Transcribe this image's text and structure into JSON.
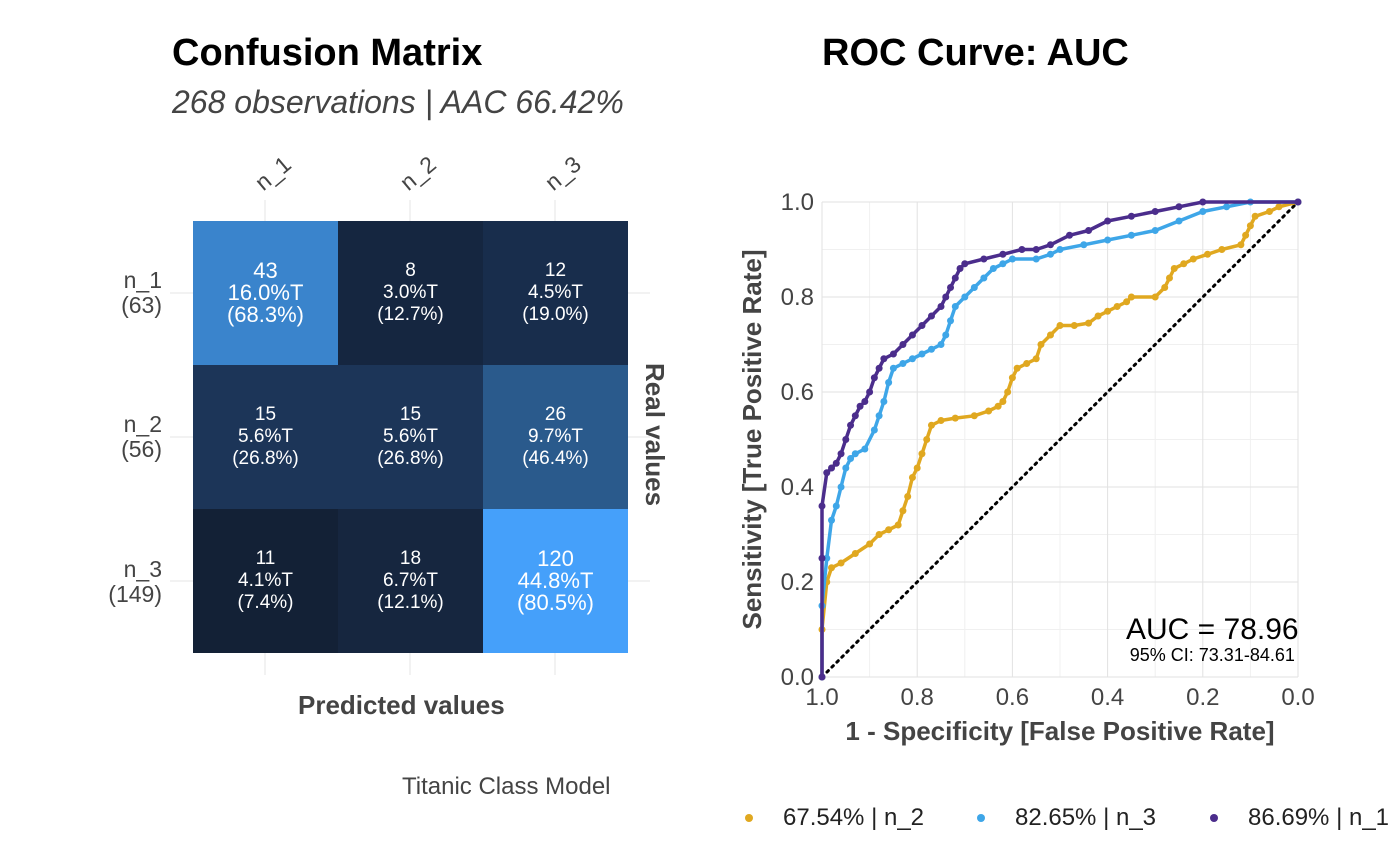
{
  "confusion": {
    "title": "Confusion Matrix",
    "subtitle": "268 observations | AAC 66.42%",
    "xlabel": "Predicted values",
    "ylabel": "Real values",
    "caption": "Titanic Class Model",
    "columns": [
      "n_1",
      "n_2",
      "n_3"
    ],
    "rows": [
      {
        "label": "n_1",
        "total": "(63)"
      },
      {
        "label": "n_2",
        "total": "(56)"
      },
      {
        "label": "n_3",
        "total": "(149)"
      }
    ],
    "cells": [
      [
        {
          "count": "43",
          "pct": "16.0%T",
          "rowpct": "(68.3%)",
          "color": "#3a84cc"
        },
        {
          "count": "8",
          "pct": "3.0%T",
          "rowpct": "(12.7%)",
          "color": "#152640"
        },
        {
          "count": "12",
          "pct": "4.5%T",
          "rowpct": "(19.0%)",
          "color": "#182d4c"
        }
      ],
      [
        {
          "count": "15",
          "pct": "5.6%T",
          "rowpct": "(26.8%)",
          "color": "#1c3558"
        },
        {
          "count": "15",
          "pct": "5.6%T",
          "rowpct": "(26.8%)",
          "color": "#1c3558"
        },
        {
          "count": "26",
          "pct": "9.7%T",
          "rowpct": "(46.4%)",
          "color": "#2a5a8c"
        }
      ],
      [
        {
          "count": "11",
          "pct": "4.1%T",
          "rowpct": "(7.4%)",
          "color": "#132136"
        },
        {
          "count": "18",
          "pct": "6.7%T",
          "rowpct": "(12.1%)",
          "color": "#16263f"
        },
        {
          "count": "120",
          "pct": "44.8%T",
          "rowpct": "(80.5%)",
          "color": "#45a0fa"
        }
      ]
    ]
  },
  "roc": {
    "title": "ROC Curve: AUC",
    "auc_text": "AUC = 78.96",
    "ci_text": "95% CI: 73.31-84.61"
  },
  "chart_data": {
    "type": "line",
    "title": "ROC Curve: AUC",
    "xlabel": "1 - Specificity [False Positive Rate]",
    "ylabel": "Sensitivity [True Positive Rate]",
    "xlim": [
      1.0,
      0.0
    ],
    "ylim": [
      0.0,
      1.0
    ],
    "x_ticks": [
      "1.0",
      "0.8",
      "0.6",
      "0.4",
      "0.2",
      "0.0"
    ],
    "y_ticks": [
      "0.0",
      "0.2",
      "0.4",
      "0.6",
      "0.8",
      "1.0"
    ],
    "grid": true,
    "legend_position": "bottom",
    "reference_line": {
      "from": [
        1.0,
        0.0
      ],
      "to": [
        0.0,
        1.0
      ],
      "style": "dotted",
      "color": "#000000"
    },
    "series": [
      {
        "name": "67.54% | n_2",
        "color": "#e0a820",
        "points": [
          [
            1.0,
            0.0
          ],
          [
            1.0,
            0.1
          ],
          [
            0.99,
            0.2
          ],
          [
            0.98,
            0.23
          ],
          [
            0.96,
            0.24
          ],
          [
            0.93,
            0.26
          ],
          [
            0.9,
            0.28
          ],
          [
            0.88,
            0.3
          ],
          [
            0.86,
            0.31
          ],
          [
            0.84,
            0.32
          ],
          [
            0.83,
            0.35
          ],
          [
            0.82,
            0.38
          ],
          [
            0.81,
            0.42
          ],
          [
            0.8,
            0.44
          ],
          [
            0.79,
            0.47
          ],
          [
            0.78,
            0.5
          ],
          [
            0.77,
            0.53
          ],
          [
            0.75,
            0.54
          ],
          [
            0.72,
            0.545
          ],
          [
            0.68,
            0.55
          ],
          [
            0.65,
            0.56
          ],
          [
            0.63,
            0.57
          ],
          [
            0.62,
            0.58
          ],
          [
            0.61,
            0.6
          ],
          [
            0.6,
            0.63
          ],
          [
            0.59,
            0.65
          ],
          [
            0.57,
            0.66
          ],
          [
            0.55,
            0.67
          ],
          [
            0.54,
            0.7
          ],
          [
            0.52,
            0.72
          ],
          [
            0.5,
            0.74
          ],
          [
            0.47,
            0.74
          ],
          [
            0.44,
            0.745
          ],
          [
            0.42,
            0.76
          ],
          [
            0.4,
            0.77
          ],
          [
            0.38,
            0.78
          ],
          [
            0.36,
            0.79
          ],
          [
            0.35,
            0.8
          ],
          [
            0.3,
            0.8
          ],
          [
            0.28,
            0.82
          ],
          [
            0.27,
            0.84
          ],
          [
            0.26,
            0.86
          ],
          [
            0.24,
            0.87
          ],
          [
            0.22,
            0.88
          ],
          [
            0.19,
            0.89
          ],
          [
            0.16,
            0.9
          ],
          [
            0.12,
            0.91
          ],
          [
            0.11,
            0.93
          ],
          [
            0.1,
            0.95
          ],
          [
            0.09,
            0.97
          ],
          [
            0.06,
            0.98
          ],
          [
            0.04,
            0.99
          ],
          [
            0.0,
            1.0
          ]
        ]
      },
      {
        "name": "82.65% | n_3",
        "color": "#3ea6e8",
        "points": [
          [
            1.0,
            0.0
          ],
          [
            1.0,
            0.15
          ],
          [
            0.99,
            0.25
          ],
          [
            0.98,
            0.33
          ],
          [
            0.97,
            0.36
          ],
          [
            0.96,
            0.4
          ],
          [
            0.95,
            0.44
          ],
          [
            0.94,
            0.46
          ],
          [
            0.93,
            0.47
          ],
          [
            0.91,
            0.48
          ],
          [
            0.89,
            0.52
          ],
          [
            0.88,
            0.55
          ],
          [
            0.87,
            0.58
          ],
          [
            0.86,
            0.62
          ],
          [
            0.85,
            0.65
          ],
          [
            0.83,
            0.66
          ],
          [
            0.81,
            0.67
          ],
          [
            0.79,
            0.68
          ],
          [
            0.77,
            0.69
          ],
          [
            0.75,
            0.7
          ],
          [
            0.74,
            0.72
          ],
          [
            0.73,
            0.75
          ],
          [
            0.72,
            0.78
          ],
          [
            0.7,
            0.8
          ],
          [
            0.68,
            0.82
          ],
          [
            0.66,
            0.84
          ],
          [
            0.64,
            0.86
          ],
          [
            0.62,
            0.87
          ],
          [
            0.6,
            0.88
          ],
          [
            0.55,
            0.88
          ],
          [
            0.52,
            0.89
          ],
          [
            0.5,
            0.9
          ],
          [
            0.45,
            0.91
          ],
          [
            0.4,
            0.92
          ],
          [
            0.35,
            0.93
          ],
          [
            0.3,
            0.94
          ],
          [
            0.25,
            0.96
          ],
          [
            0.2,
            0.98
          ],
          [
            0.15,
            0.99
          ],
          [
            0.1,
            1.0
          ],
          [
            0.0,
            1.0
          ]
        ]
      },
      {
        "name": "86.69% | n_1",
        "color": "#4b2d8c",
        "points": [
          [
            1.0,
            0.0
          ],
          [
            1.0,
            0.25
          ],
          [
            1.0,
            0.36
          ],
          [
            0.99,
            0.43
          ],
          [
            0.98,
            0.44
          ],
          [
            0.97,
            0.45
          ],
          [
            0.96,
            0.47
          ],
          [
            0.95,
            0.5
          ],
          [
            0.94,
            0.53
          ],
          [
            0.93,
            0.55
          ],
          [
            0.92,
            0.57
          ],
          [
            0.91,
            0.58
          ],
          [
            0.9,
            0.6
          ],
          [
            0.89,
            0.63
          ],
          [
            0.88,
            0.65
          ],
          [
            0.87,
            0.67
          ],
          [
            0.85,
            0.68
          ],
          [
            0.83,
            0.7
          ],
          [
            0.81,
            0.72
          ],
          [
            0.79,
            0.74
          ],
          [
            0.77,
            0.76
          ],
          [
            0.75,
            0.78
          ],
          [
            0.74,
            0.8
          ],
          [
            0.73,
            0.82
          ],
          [
            0.72,
            0.84
          ],
          [
            0.71,
            0.86
          ],
          [
            0.7,
            0.87
          ],
          [
            0.66,
            0.88
          ],
          [
            0.62,
            0.89
          ],
          [
            0.58,
            0.9
          ],
          [
            0.55,
            0.9
          ],
          [
            0.52,
            0.91
          ],
          [
            0.48,
            0.93
          ],
          [
            0.44,
            0.94
          ],
          [
            0.4,
            0.96
          ],
          [
            0.35,
            0.97
          ],
          [
            0.3,
            0.98
          ],
          [
            0.25,
            0.99
          ],
          [
            0.2,
            1.0
          ],
          [
            0.0,
            1.0
          ]
        ]
      }
    ]
  }
}
